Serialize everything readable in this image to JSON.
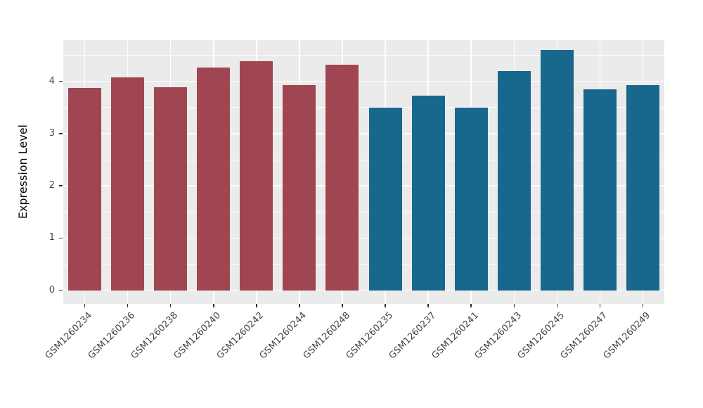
{
  "chart_data": {
    "type": "bar",
    "title": "",
    "xlabel": "",
    "ylabel": "Expression Level",
    "categories": [
      "GSM1260234",
      "GSM1260236",
      "GSM1260238",
      "GSM1260240",
      "GSM1260242",
      "GSM1260244",
      "GSM1260248",
      "GSM1260235",
      "GSM1260237",
      "GSM1260241",
      "GSM1260243",
      "GSM1260245",
      "GSM1260247",
      "GSM1260249"
    ],
    "values": [
      3.88,
      4.07,
      3.89,
      4.27,
      4.38,
      3.93,
      4.32,
      3.5,
      3.72,
      3.5,
      4.2,
      4.6,
      3.85,
      3.93
    ],
    "groups": [
      "A",
      "A",
      "A",
      "A",
      "A",
      "A",
      "A",
      "B",
      "B",
      "B",
      "B",
      "B",
      "B",
      "B"
    ],
    "group_colors": {
      "A": "#A04552",
      "B": "#17688C"
    },
    "yticks": [
      0,
      1,
      2,
      3,
      4
    ],
    "ytick_labels": [
      "0",
      "1",
      "2",
      "3",
      "4"
    ],
    "minor_yticks": [
      0.5,
      1.5,
      2.5,
      3.5,
      4.5
    ],
    "ylim": [
      -0.26,
      4.79
    ],
    "panel_background": "#EBEBEB",
    "grid_color": "#FFFFFF",
    "bar_width_fraction": 0.77,
    "legend_position": "none",
    "grid": "on"
  }
}
